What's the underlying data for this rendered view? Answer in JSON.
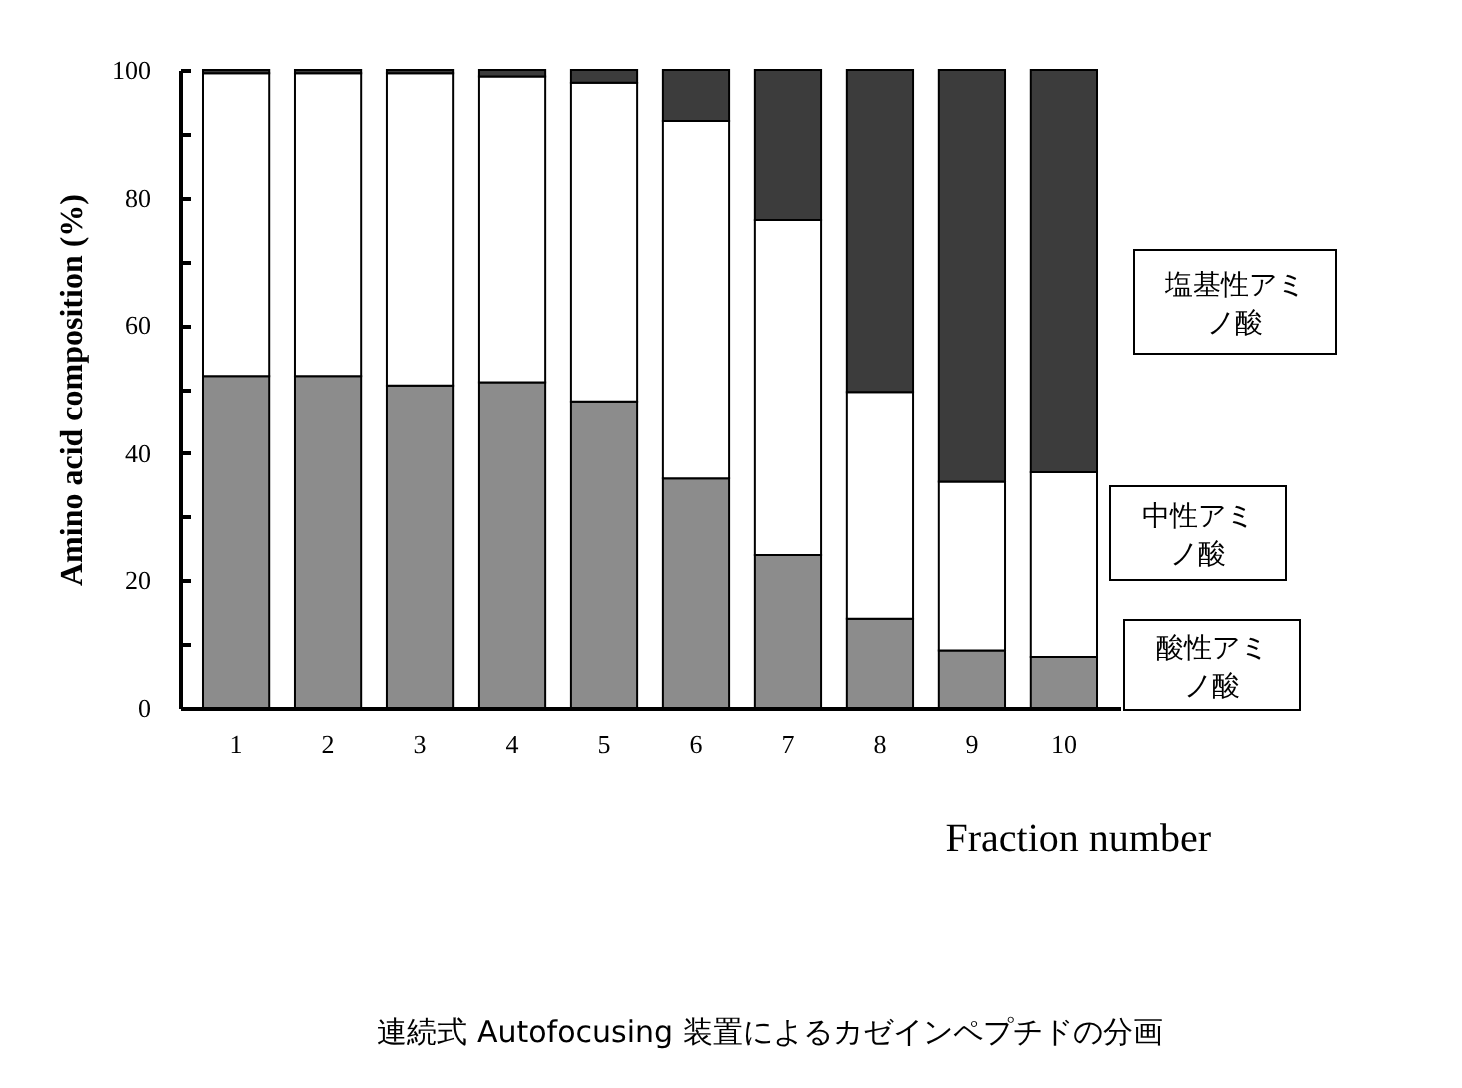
{
  "chart_data": {
    "type": "bar",
    "stacked": true,
    "title": "連続式 Autofocusing 装置によるカゼインペプチドの分画",
    "xlabel": "Fraction number",
    "ylabel": "Amino acid composition (%)",
    "categories": [
      "1",
      "2",
      "3",
      "4",
      "5",
      "6",
      "7",
      "8",
      "9",
      "10"
    ],
    "series": [
      {
        "name": "酸性アミノ酸",
        "color": "#8c8c8c",
        "values": [
          52,
          52,
          50.5,
          51,
          48,
          36,
          24,
          14,
          9,
          8
        ]
      },
      {
        "name": "中性アミノ酸",
        "color": "#ffffff",
        "values": [
          47.5,
          47.5,
          49,
          48,
          50,
          56,
          52.5,
          35.5,
          26.5,
          29
        ]
      },
      {
        "name": "塩基性アミノ酸",
        "color": "#3c3c3c",
        "values": [
          0.5,
          0.5,
          0.5,
          1,
          2,
          8,
          23.5,
          50.5,
          64.5,
          63
        ]
      }
    ],
    "ylim": [
      0,
      100
    ],
    "yticks": [
      0,
      {
        "value": 10,
        "label": null
      },
      20,
      {
        "value": 30,
        "label": null
      },
      40,
      {
        "value": 50,
        "label": null
      },
      60,
      {
        "value": 70,
        "label": null
      },
      80,
      {
        "value": 90,
        "label": null
      },
      100
    ],
    "grid": false,
    "legend": "right"
  }
}
